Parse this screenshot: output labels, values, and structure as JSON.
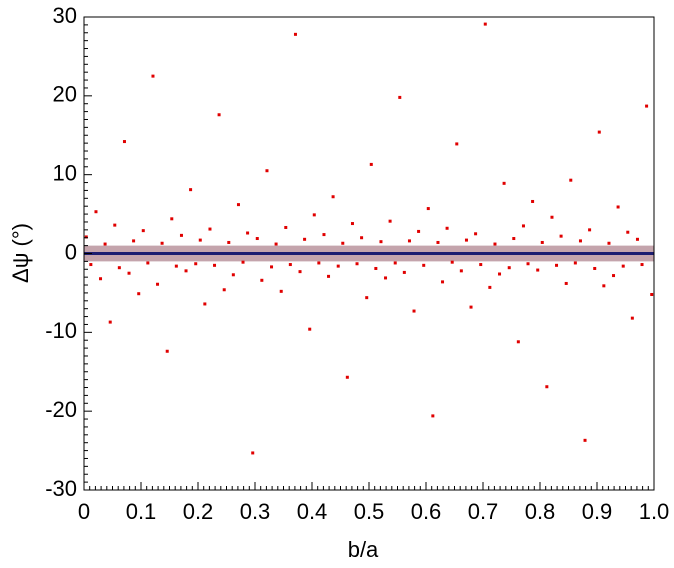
{
  "chart_data": {
    "type": "scatter",
    "xlabel": "b/a",
    "ylabel": "Δψ (°)",
    "xlim": [
      0,
      1
    ],
    "ylim": [
      -30,
      30
    ],
    "xticks": [
      0,
      0.1,
      0.2,
      0.3,
      0.4,
      0.5,
      0.6,
      0.7,
      0.8,
      0.9,
      {
        "value": 1,
        "label": "1.0"
      }
    ],
    "yticks": [
      -30,
      -20,
      -10,
      0,
      10,
      20,
      30
    ],
    "band": [
      -1,
      1
    ],
    "band_color": "#c4a4ac",
    "reference_line": 0,
    "reference_color": "#1c1c70",
    "series": [
      {
        "color": "#e00000",
        "x": [
          0.004,
          0.012,
          0.021,
          0.029,
          0.037,
          0.046,
          0.054,
          0.062,
          0.071,
          0.079,
          0.087,
          0.096,
          0.104,
          0.112,
          0.121,
          0.129,
          0.137,
          0.146,
          0.154,
          0.162,
          0.171,
          0.179,
          0.187,
          0.196,
          0.204,
          0.212,
          0.221,
          0.229,
          0.237,
          0.246,
          0.254,
          0.262,
          0.271,
          0.279,
          0.287,
          0.296,
          0.304,
          0.312,
          0.321,
          0.329,
          0.337,
          0.346,
          0.354,
          0.362,
          0.371,
          0.379,
          0.387,
          0.396,
          0.404,
          0.412,
          0.421,
          0.429,
          0.437,
          0.446,
          0.454,
          0.462,
          0.471,
          0.479,
          0.487,
          0.496,
          0.504,
          0.512,
          0.521,
          0.529,
          0.537,
          0.546,
          0.554,
          0.562,
          0.571,
          0.579,
          0.587,
          0.596,
          0.604,
          0.612,
          0.621,
          0.629,
          0.637,
          0.646,
          0.654,
          0.662,
          0.671,
          0.679,
          0.687,
          0.696,
          0.704,
          0.712,
          0.721,
          0.729,
          0.737,
          0.746,
          0.754,
          0.762,
          0.771,
          0.779,
          0.787,
          0.796,
          0.804,
          0.812,
          0.821,
          0.829,
          0.837,
          0.846,
          0.854,
          0.862,
          0.871,
          0.879,
          0.887,
          0.896,
          0.904,
          0.912,
          0.921,
          0.929,
          0.937,
          0.946,
          0.954,
          0.962,
          0.971,
          0.979,
          0.987,
          0.996
        ],
        "y": [
          2.1,
          -1.4,
          5.3,
          -3.2,
          1.2,
          -8.7,
          3.6,
          -1.8,
          14.2,
          -2.5,
          1.6,
          -5.1,
          2.9,
          -1.2,
          22.5,
          -3.9,
          1.3,
          -12.4,
          4.4,
          -1.6,
          2.3,
          -2.2,
          8.1,
          -1.3,
          1.7,
          -6.4,
          3.1,
          -1.5,
          17.6,
          -4.6,
          1.4,
          -2.7,
          6.2,
          -1.1,
          2.6,
          -25.3,
          1.9,
          -3.4,
          10.5,
          -1.7,
          1.2,
          -4.8,
          3.3,
          -1.4,
          27.8,
          -2.3,
          1.8,
          -9.6,
          4.9,
          -1.2,
          2.4,
          -2.9,
          7.2,
          -1.6,
          1.3,
          -15.7,
          3.8,
          -1.3,
          2.0,
          -5.6,
          11.3,
          -1.9,
          1.5,
          -3.1,
          4.1,
          -1.2,
          19.8,
          -2.4,
          1.6,
          -7.3,
          2.8,
          -1.5,
          5.7,
          -20.6,
          1.4,
          -3.6,
          3.2,
          -1.1,
          13.9,
          -2.2,
          1.7,
          -6.8,
          2.5,
          -1.4,
          29.1,
          -4.3,
          1.2,
          -2.6,
          8.9,
          -1.8,
          1.9,
          -11.2,
          3.5,
          -1.3,
          6.6,
          -2.1,
          1.4,
          -16.9,
          4.6,
          -1.5,
          2.2,
          -3.8,
          9.3,
          -1.2,
          1.6,
          -23.7,
          3.0,
          -1.9,
          15.4,
          -4.1,
          1.3,
          -2.8,
          5.9,
          -1.6,
          2.7,
          -8.2,
          1.8,
          -1.4,
          18.7,
          -5.2
        ]
      }
    ]
  }
}
